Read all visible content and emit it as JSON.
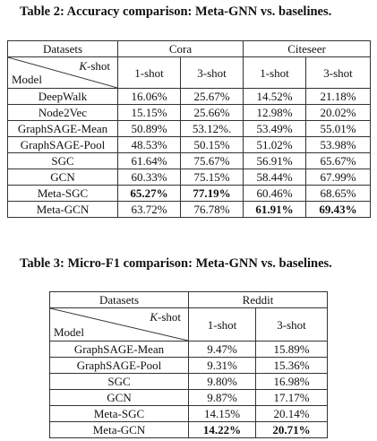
{
  "table2": {
    "caption": "Table 2: Accuracy comparison: Meta-GNN vs. baselines.",
    "header": {
      "datasets": "Datasets",
      "k_shot": "K-shot",
      "model": "Model",
      "groups": [
        "Cora",
        "Citeseer"
      ],
      "shots": [
        "1-shot",
        "3-shot",
        "1-shot",
        "3-shot"
      ]
    },
    "rows": [
      {
        "model": "DeepWalk",
        "values": [
          "16.06%",
          "25.67%",
          "14.52%",
          "21.18%"
        ]
      },
      {
        "model": "Node2Vec",
        "values": [
          "15.15%",
          "25.66%",
          "12.98%",
          "20.02%"
        ]
      },
      {
        "model": "GraphSAGE-Mean",
        "values": [
          "50.89%",
          "53.12%.",
          "53.49%",
          "55.01%"
        ]
      },
      {
        "model": "GraphSAGE-Pool",
        "values": [
          "48.53%",
          "50.15%",
          "51.02%",
          "53.98%"
        ]
      },
      {
        "model": "SGC",
        "values": [
          "61.64%",
          "75.67%",
          "56.91%",
          "65.67%"
        ]
      },
      {
        "model": "GCN",
        "values": [
          "60.33%",
          "75.15%",
          "58.44%",
          "67.99%"
        ]
      },
      {
        "model": "Meta-SGC",
        "values": [
          "65.27%",
          "77.19%",
          "60.46%",
          "68.65%"
        ]
      },
      {
        "model": "Meta-GCN",
        "values": [
          "63.72%",
          "76.78%",
          "61.91%",
          "69.43%"
        ]
      }
    ],
    "bold": [
      [
        6,
        0
      ],
      [
        6,
        1
      ],
      [
        7,
        2
      ],
      [
        7,
        3
      ]
    ]
  },
  "table3": {
    "caption": "Table 3: Micro-F1 comparison: Meta-GNN vs. baselines.",
    "header": {
      "datasets": "Datasets",
      "k_shot": "K-shot",
      "model": "Model",
      "groups": [
        "Reddit"
      ],
      "shots": [
        "1-shot",
        "3-shot"
      ]
    },
    "rows": [
      {
        "model": "GraphSAGE-Mean",
        "values": [
          "9.47%",
          "15.89%"
        ]
      },
      {
        "model": "GraphSAGE-Pool",
        "values": [
          "9.31%",
          "15.36%"
        ]
      },
      {
        "model": "SGC",
        "values": [
          "9.80%",
          "16.98%"
        ]
      },
      {
        "model": "GCN",
        "values": [
          "9.87%",
          "17.17%"
        ]
      },
      {
        "model": "Meta-SGC",
        "values": [
          "14.15%",
          "20.14%"
        ]
      },
      {
        "model": "Meta-GCN",
        "values": [
          "14.22%",
          "20.71%"
        ]
      }
    ],
    "bold": [
      [
        5,
        0
      ],
      [
        5,
        1
      ]
    ]
  }
}
